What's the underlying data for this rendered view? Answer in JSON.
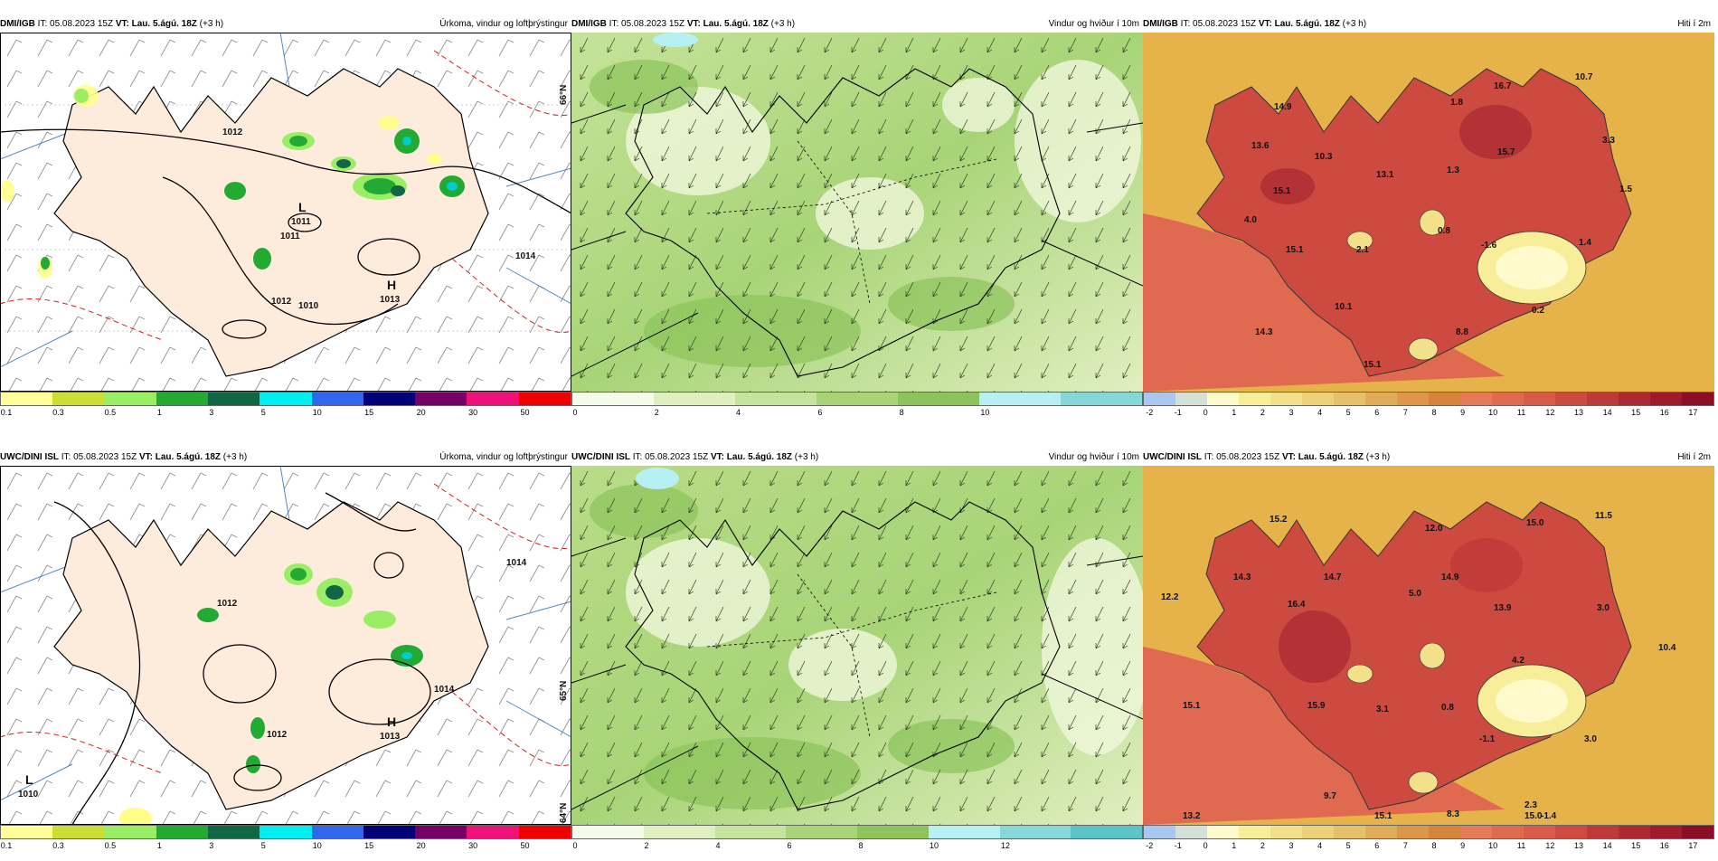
{
  "rows": [
    {
      "source": "DMI/IGB",
      "it": "IT: 05.08.2023 15Z",
      "vt": "VT: Lau. 5.ágú. 18Z",
      "lead": "(+3 h)"
    },
    {
      "source": "UWC/DINI ISL",
      "it": "IT: 05.08.2023 15Z",
      "vt": "VT: Lau. 5.ágú. 18Z",
      "lead": "(+3 h)"
    }
  ],
  "titles": {
    "precip": "Úrkoma, vindur og loftþrýstingur",
    "wind": "Vindur og hviður í 10m",
    "temp": "Hiti í 2m"
  },
  "legends": {
    "precip": {
      "colors": [
        "#ffff99",
        "#ccdd33",
        "#99ee66",
        "#22aa33",
        "#116644",
        "#00eeee",
        "#3366ee",
        "#000077",
        "#770066",
        "#ee1177",
        "#ee0000"
      ],
      "labels": [
        "0.1",
        "0.3",
        "0.5",
        "1",
        "3",
        "5",
        "10",
        "15",
        "20",
        "30",
        "50"
      ]
    },
    "wind_top": {
      "colors": [
        "#f6fae8",
        "#e0efc0",
        "#c5e39a",
        "#a8d477",
        "#8cc35a",
        "#b6f0f2",
        "#86d8d8"
      ],
      "labels": [
        "0",
        "2",
        "4",
        "6",
        "8",
        "10"
      ]
    },
    "wind_bottom": {
      "colors": [
        "#f6fae8",
        "#e0efc0",
        "#c5e39a",
        "#a8d477",
        "#8cc35a",
        "#b6f0f2",
        "#86d8d8",
        "#5cc4c4"
      ],
      "labels": [
        "0",
        "2",
        "4",
        "6",
        "8",
        "10",
        "12"
      ]
    },
    "temp": {
      "colors": [
        "#a8c8f0",
        "#d4e0d8",
        "#fffacc",
        "#f8ee99",
        "#f2e08a",
        "#ecd07a",
        "#e6c06a",
        "#e0ac58",
        "#dc9848",
        "#d6843c",
        "#e47a58",
        "#de6a50",
        "#d85a48",
        "#cc4a40",
        "#be3a38",
        "#ae2a32",
        "#9e1a2c",
        "#8c0e26"
      ],
      "labels": [
        "-2",
        "-1",
        "0",
        "1",
        "2",
        "3",
        "4",
        "5",
        "6",
        "7",
        "8",
        "9",
        "10",
        "11",
        "12",
        "13",
        "14",
        "15",
        "16",
        "17"
      ]
    }
  },
  "precip_panels": [
    {
      "pressure_labels": [
        "1012",
        "1011",
        "1012",
        "1010",
        "1014"
      ],
      "centers": [
        {
          "letter": "L",
          "value": "1011"
        },
        {
          "letter": "H",
          "value": "1013"
        }
      ]
    },
    {
      "pressure_labels": [
        "1012",
        "1014",
        "1012",
        "1014"
      ],
      "centers": [
        {
          "letter": "H",
          "value": "1013"
        },
        {
          "letter": "L",
          "value": "1010"
        }
      ]
    }
  ],
  "lat_labels": [
    "66°N",
    "65°N",
    "64°N"
  ],
  "temp_top_values": [
    "16.7",
    "10.7",
    "14.9",
    "1.8",
    "13.6",
    "10.3",
    "15.7",
    "3.3",
    "13.1",
    "1.3",
    "15.1",
    "1.5",
    "4.0",
    "0.8",
    "15.1",
    "2.1",
    "-1.6",
    "1.4",
    "10.1",
    "0.2",
    "14.3",
    "8.8",
    "15.1"
  ],
  "temp_bottom_values": [
    "15.2",
    "12.0",
    "15.0",
    "11.5",
    "14.3",
    "12.2",
    "14.7",
    "14.9",
    "5.0",
    "13.9",
    "3.0",
    "16.4",
    "10.4",
    "4.2",
    "15.1",
    "15.9",
    "3.1",
    "0.8",
    "-1.1",
    "3.0",
    "9.7",
    "2.3",
    "8.3",
    "13.2",
    "15.1",
    "-1.4",
    "15.0"
  ]
}
